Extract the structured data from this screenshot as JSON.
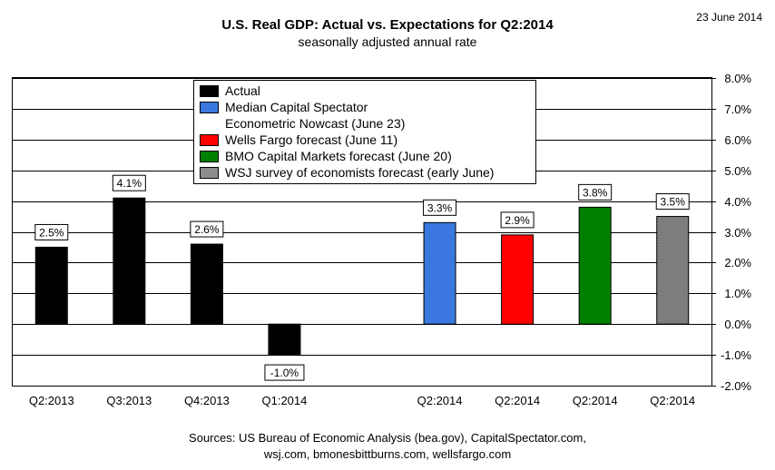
{
  "title": "U.S. Real GDP: Actual vs. Expectations for Q2:2014",
  "subtitle": "seasonally adjusted annual rate",
  "date": "23 June 2014",
  "sources": [
    "Sources: US Bureau of Economic Analysis (bea.gov), CapitalSpectator.com,",
    "wsj.com, bmonesbittburns.com, wellsfargo.com"
  ],
  "chart_data": {
    "type": "bar",
    "categories": [
      "Q2:2013",
      "Q3:2013",
      "Q4:2013",
      "Q1:2014",
      "",
      "Q2:2014",
      "Q2:2014",
      "Q2:2014",
      "Q2:2014"
    ],
    "values": [
      2.5,
      4.1,
      2.6,
      -1.0,
      null,
      3.3,
      2.9,
      3.8,
      3.5
    ],
    "data_labels": [
      "2.5%",
      "4.1%",
      "2.6%",
      "-1.0%",
      "",
      "3.3%",
      "2.9%",
      "3.8%",
      "3.5%"
    ],
    "bar_series": [
      0,
      0,
      0,
      0,
      null,
      1,
      2,
      3,
      4
    ],
    "ylim": [
      -2.0,
      8.0
    ],
    "yticks": [
      8.0,
      7.0,
      6.0,
      5.0,
      4.0,
      3.0,
      2.0,
      1.0,
      0.0,
      -1.0,
      -2.0
    ],
    "ytick_labels": [
      "8.0%",
      "7.0%",
      "6.0%",
      "5.0%",
      "4.0%",
      "3.0%",
      "2.0%",
      "1.0%",
      "0.0%",
      "-1.0%",
      "-2.0%"
    ],
    "y_axis_side": "right",
    "grid": true,
    "legend_position": "top-center",
    "series": [
      {
        "name": "Actual",
        "color": "#000000"
      },
      {
        "name": "Median Capital Spectator Econometric Nowcast (June 23)",
        "color": "#3a78e0"
      },
      {
        "name": "Wells Fargo forecast (June 11)",
        "color": "#ff0000"
      },
      {
        "name": "BMO Capital Markets forecast (June 20)",
        "color": "#008000"
      },
      {
        "name": "WSJ survey of economists forecast (early June)",
        "color": "#8c8c8c"
      }
    ]
  },
  "legend": {
    "items": [
      {
        "label": "Actual",
        "color": "#000000"
      },
      {
        "label": "Median Capital Spectator",
        "color": "#3a78e0"
      },
      {
        "label": "Econometric Nowcast (June 23)",
        "color": ""
      },
      {
        "label": "Wells Fargo forecast (June 11)",
        "color": "#ff0000"
      },
      {
        "label": "BMO Capital Markets forecast (June 20)",
        "color": "#008000"
      },
      {
        "label": "WSJ survey of economists forecast (early June)",
        "color": "#8c8c8c"
      }
    ]
  }
}
